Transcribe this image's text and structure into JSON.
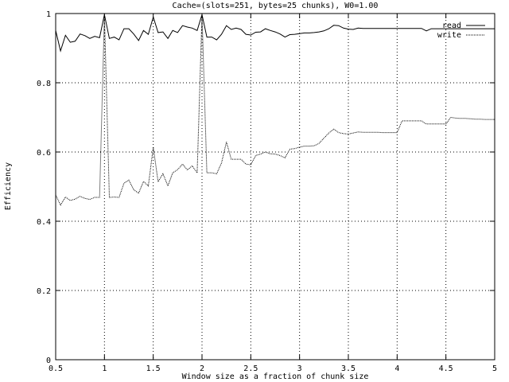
{
  "chart_data": {
    "type": "line",
    "title": "Cache=(slots=251, bytes=25 chunks), W0=1.00",
    "xlabel": "Window size as a fraction of chunk size",
    "ylabel": "Efficiency",
    "xlim": [
      0.5,
      5
    ],
    "ylim": [
      0,
      1
    ],
    "xticks": [
      0.5,
      1,
      1.5,
      2,
      2.5,
      3,
      3.5,
      4,
      4.5,
      5
    ],
    "xtick_labels": [
      "0.5",
      "1",
      "1.5",
      "2",
      "2.5",
      "3",
      "3.5",
      "4",
      "4.5",
      "5"
    ],
    "yticks": [
      0,
      0.2,
      0.4,
      0.6,
      0.8,
      1
    ],
    "ytick_labels": [
      "0",
      "0.2",
      "0.4",
      "0.6",
      "0.8",
      "1"
    ],
    "grid": true,
    "legend_position": "top-right",
    "x": [
      0.5,
      0.55,
      0.6,
      0.65,
      0.7,
      0.75,
      0.8,
      0.85,
      0.9,
      0.95,
      1.0,
      1.05,
      1.1,
      1.15,
      1.2,
      1.25,
      1.3,
      1.35,
      1.4,
      1.45,
      1.5,
      1.55,
      1.6,
      1.65,
      1.7,
      1.75,
      1.8,
      1.85,
      1.9,
      1.95,
      2.0,
      2.05,
      2.1,
      2.15,
      2.2,
      2.25,
      2.3,
      2.35,
      2.4,
      2.45,
      2.5,
      2.55,
      2.6,
      2.65,
      2.7,
      2.75,
      2.8,
      2.85,
      2.9,
      2.95,
      3.0,
      3.05,
      3.1,
      3.15,
      3.2,
      3.25,
      3.3,
      3.35,
      3.4,
      3.45,
      3.5,
      3.55,
      3.6,
      3.65,
      3.7,
      3.75,
      3.8,
      3.85,
      3.9,
      3.95,
      4.0,
      4.05,
      4.1,
      4.15,
      4.2,
      4.25,
      4.3,
      4.35,
      4.4,
      4.45,
      4.5,
      4.55,
      4.6,
      4.65,
      4.7,
      4.75,
      4.8,
      4.85,
      4.9,
      4.95,
      5.0
    ],
    "series": [
      {
        "name": "read",
        "style": "solid",
        "color": "#000000",
        "values": [
          0.951,
          0.892,
          0.937,
          0.917,
          0.92,
          0.941,
          0.936,
          0.928,
          0.934,
          0.93,
          0.997,
          0.928,
          0.932,
          0.924,
          0.956,
          0.956,
          0.941,
          0.922,
          0.951,
          0.94,
          0.99,
          0.945,
          0.947,
          0.928,
          0.951,
          0.945,
          0.965,
          0.961,
          0.958,
          0.951,
          0.997,
          0.932,
          0.932,
          0.924,
          0.94,
          0.965,
          0.954,
          0.958,
          0.954,
          0.94,
          0.938,
          0.946,
          0.947,
          0.956,
          0.951,
          0.947,
          0.941,
          0.932,
          0.939,
          0.94,
          0.942,
          0.944,
          0.944,
          0.945,
          0.947,
          0.95,
          0.956,
          0.966,
          0.965,
          0.958,
          0.955,
          0.954,
          0.958,
          0.957,
          0.957,
          0.957,
          0.957,
          0.957,
          0.957,
          0.957,
          0.957,
          0.957,
          0.957,
          0.957,
          0.957,
          0.957,
          0.95,
          0.956,
          0.956,
          0.956,
          0.956,
          0.956,
          0.956,
          0.956,
          0.956,
          0.956,
          0.956,
          0.956,
          0.956,
          0.956,
          0.956
        ]
      },
      {
        "name": "write",
        "style": "dotted",
        "color": "#000000",
        "values": [
          0.476,
          0.447,
          0.47,
          0.46,
          0.464,
          0.472,
          0.466,
          0.463,
          0.469,
          0.469,
          0.995,
          0.469,
          0.47,
          0.469,
          0.51,
          0.519,
          0.491,
          0.481,
          0.515,
          0.502,
          0.614,
          0.514,
          0.537,
          0.502,
          0.54,
          0.549,
          0.565,
          0.548,
          0.56,
          0.54,
          0.995,
          0.54,
          0.54,
          0.537,
          0.568,
          0.629,
          0.579,
          0.579,
          0.579,
          0.565,
          0.563,
          0.59,
          0.594,
          0.6,
          0.595,
          0.594,
          0.59,
          0.583,
          0.608,
          0.61,
          0.614,
          0.617,
          0.617,
          0.618,
          0.625,
          0.64,
          0.655,
          0.666,
          0.656,
          0.653,
          0.652,
          0.655,
          0.658,
          0.657,
          0.657,
          0.657,
          0.657,
          0.656,
          0.656,
          0.656,
          0.656,
          0.69,
          0.69,
          0.69,
          0.69,
          0.69,
          0.681,
          0.681,
          0.681,
          0.681,
          0.681,
          0.7,
          0.698,
          0.697,
          0.697,
          0.696,
          0.695,
          0.695,
          0.694,
          0.694,
          0.694
        ]
      }
    ]
  }
}
